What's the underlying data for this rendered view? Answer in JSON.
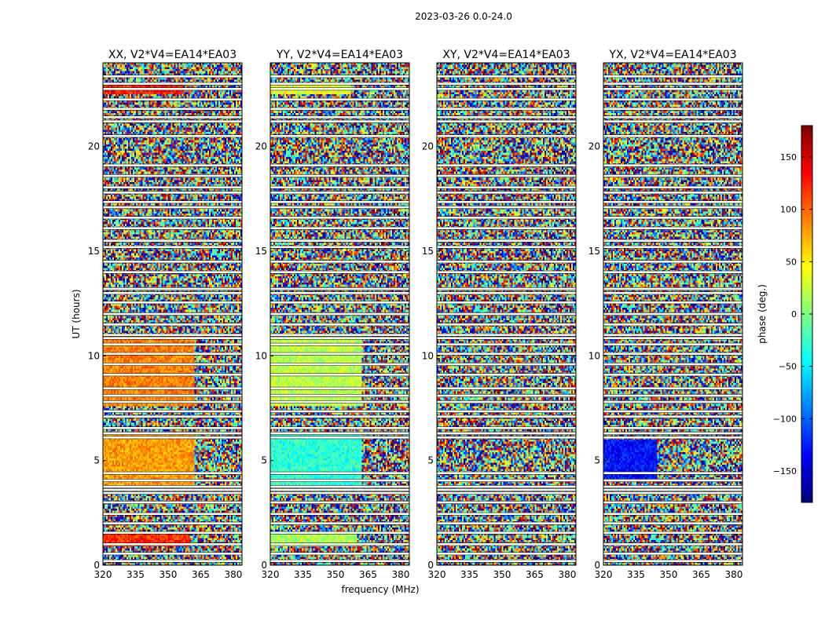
{
  "figure": {
    "suptitle": "2023-03-26 0.0-24.0",
    "xlabel": "frequency (MHz)",
    "ylabel": "UT (hours)"
  },
  "colorbar": {
    "label": "phase (deg.)",
    "ticks": [
      150,
      100,
      50,
      0,
      -50,
      -100,
      -150
    ],
    "tick_labels": [
      "150",
      "100",
      "50",
      "0",
      "−50",
      "−100",
      "−150"
    ],
    "range": [
      -180,
      180
    ],
    "colormap": "jet",
    "colors": [
      "#00007f",
      "#0000ff",
      "#007fff",
      "#00ffff",
      "#7fff7f",
      "#ffff00",
      "#ff7f00",
      "#ff0000",
      "#7f0000"
    ]
  },
  "chart_data": [
    {
      "type": "heatmap",
      "title": "XX, V2*V4=EA14*EA03",
      "xlabel": "frequency (MHz)",
      "ylabel": "UT (hours)",
      "xlim": [
        320,
        384
      ],
      "ylim": [
        0,
        24
      ],
      "xticks": [
        320,
        335,
        350,
        365,
        380
      ],
      "yticks": [
        0,
        5,
        10,
        15,
        20
      ],
      "z": "phase (deg.)",
      "zlim": [
        -180,
        180
      ],
      "coherent_ranges": [
        {
          "ut_start": 3.8,
          "ut_end": 6.3,
          "freq_start": 320,
          "freq_end": 362,
          "phase_deg": 80
        },
        {
          "ut_start": 7.6,
          "ut_end": 11.0,
          "freq_start": 320,
          "freq_end": 362,
          "phase_deg": 90
        },
        {
          "ut_start": 0.9,
          "ut_end": 1.5,
          "freq_start": 320,
          "freq_end": 360,
          "phase_deg": 120
        },
        {
          "ut_start": 22.5,
          "ut_end": 23.0,
          "freq_start": 320,
          "freq_end": 357,
          "phase_deg": 125
        }
      ]
    },
    {
      "type": "heatmap",
      "title": "YY, V2*V4=EA14*EA03",
      "xlabel": "frequency (MHz)",
      "ylabel": "UT (hours)",
      "xlim": [
        320,
        384
      ],
      "ylim": [
        0,
        24
      ],
      "xticks": [
        320,
        335,
        350,
        365,
        380
      ],
      "yticks": [
        0,
        5,
        10,
        15,
        20
      ],
      "z": "phase (deg.)",
      "zlim": [
        -180,
        180
      ],
      "coherent_ranges": [
        {
          "ut_start": 3.8,
          "ut_end": 6.3,
          "freq_start": 320,
          "freq_end": 362,
          "phase_deg": -30
        },
        {
          "ut_start": 7.6,
          "ut_end": 11.0,
          "freq_start": 320,
          "freq_end": 362,
          "phase_deg": 20
        },
        {
          "ut_start": 0.9,
          "ut_end": 1.5,
          "freq_start": 320,
          "freq_end": 360,
          "phase_deg": 15
        },
        {
          "ut_start": 22.5,
          "ut_end": 23.0,
          "freq_start": 320,
          "freq_end": 357,
          "phase_deg": 40
        }
      ]
    },
    {
      "type": "heatmap",
      "title": "XY, V2*V4=EA14*EA03",
      "xlabel": "frequency (MHz)",
      "ylabel": "UT (hours)",
      "xlim": [
        320,
        384
      ],
      "ylim": [
        0,
        24
      ],
      "xticks": [
        320,
        335,
        350,
        365,
        380
      ],
      "yticks": [
        0,
        5,
        10,
        15,
        20
      ],
      "z": "phase (deg.)",
      "zlim": [
        -180,
        180
      ],
      "coherent_ranges": []
    },
    {
      "type": "heatmap",
      "title": "YX, V2*V4=EA14*EA03",
      "xlabel": "frequency (MHz)",
      "ylabel": "UT (hours)",
      "xlim": [
        320,
        384
      ],
      "ylim": [
        0,
        24
      ],
      "xticks": [
        320,
        335,
        350,
        365,
        380
      ],
      "yticks": [
        0,
        5,
        10,
        15,
        20
      ],
      "z": "phase (deg.)",
      "zlim": [
        -180,
        180
      ],
      "coherent_ranges": [
        {
          "ut_start": 4.0,
          "ut_end": 6.0,
          "freq_start": 320,
          "freq_end": 345,
          "phase_deg": -130
        }
      ]
    }
  ],
  "flagged_ut_hours": [
    0.2,
    0.55,
    1.0,
    1.55,
    2.0,
    2.45,
    3.0,
    3.45,
    3.6,
    3.75,
    4.05,
    4.4,
    6.1,
    6.3,
    6.55,
    7.1,
    7.35,
    7.8,
    8.1,
    8.45,
    9.1,
    9.6,
    10.1,
    10.55,
    10.85,
    11.0,
    11.5,
    12.0,
    12.55,
    13.0,
    13.2,
    14.0,
    14.5,
    15.2,
    15.5,
    16.1,
    16.6,
    17.1,
    17.35,
    17.8,
    18.05,
    18.6,
    19.1,
    20.5,
    21.2,
    21.4,
    21.8,
    22.25,
    22.75,
    23.0,
    23.35
  ]
}
